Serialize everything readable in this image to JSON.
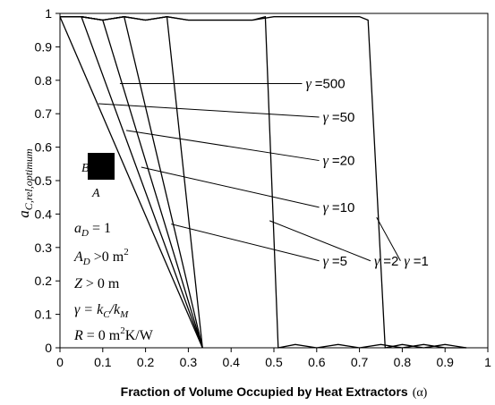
{
  "chart_data": {
    "type": "line",
    "xlabel": "Fraction of Volume Occupied by Heat Extractors",
    "xlabel_symbol": "(α)",
    "ylabel": "a",
    "ylabel_sub": "C,rel,optimum",
    "xlim": [
      0,
      1
    ],
    "ylim": [
      0,
      1
    ],
    "x_ticks": [
      "0",
      "0.1",
      "0.2",
      "0.3",
      "0.4",
      "0.5",
      "0.6",
      "0.7",
      "0.8",
      "0.9",
      "1"
    ],
    "y_ticks": [
      "0",
      "0.1",
      "0.2",
      "0.3",
      "0.4",
      "0.5",
      "0.6",
      "0.7",
      "0.8",
      "0.9",
      "1"
    ],
    "grid": false,
    "series": [
      {
        "name": "γ =500",
        "x": [
          0,
          0.333
        ],
        "y": [
          0.99,
          0
        ]
      },
      {
        "name": "γ =50",
        "x": [
          0,
          0.05,
          0.333
        ],
        "y": [
          0.99,
          0.99,
          0
        ]
      },
      {
        "name": "γ =20",
        "x": [
          0,
          0.05,
          0.1,
          0.333
        ],
        "y": [
          0.99,
          0.99,
          0.98,
          0
        ]
      },
      {
        "name": "γ =10",
        "x": [
          0,
          0.05,
          0.1,
          0.15,
          0.333
        ],
        "y": [
          0.99,
          0.99,
          0.98,
          0.99,
          0
        ]
      },
      {
        "name": "γ =5",
        "x": [
          0,
          0.05,
          0.1,
          0.15,
          0.2,
          0.25,
          0.333
        ],
        "y": [
          0.99,
          0.99,
          0.98,
          0.99,
          0.98,
          0.99,
          0
        ]
      },
      {
        "name": "γ =2",
        "x": [
          0,
          0.05,
          0.1,
          0.15,
          0.2,
          0.25,
          0.3,
          0.35,
          0.4,
          0.45,
          0.48,
          0.51,
          0.55,
          0.6,
          0.65,
          0.7,
          0.75,
          0.8,
          0.85,
          0.9,
          0.95
        ],
        "y": [
          0.99,
          0.99,
          0.98,
          0.99,
          0.98,
          0.99,
          0.98,
          0.98,
          0.98,
          0.98,
          0.99,
          0,
          0.01,
          0,
          0.01,
          0,
          0.01,
          0,
          0.01,
          0,
          0
        ]
      },
      {
        "name": "γ =1",
        "x": [
          0,
          0.05,
          0.1,
          0.15,
          0.2,
          0.25,
          0.3,
          0.35,
          0.4,
          0.45,
          0.5,
          0.55,
          0.6,
          0.65,
          0.7,
          0.72,
          0.76,
          0.8,
          0.85,
          0.9,
          0.95
        ],
        "y": [
          0.99,
          0.99,
          0.98,
          0.99,
          0.98,
          0.99,
          0.98,
          0.98,
          0.98,
          0.98,
          0.99,
          0.99,
          0.99,
          0.99,
          0.99,
          0.98,
          0,
          0.01,
          0,
          0.01,
          0
        ]
      }
    ],
    "annotations": [
      {
        "label": "γ =500",
        "x": 0.57,
        "y": 0.79,
        "line_to_x": 0.14,
        "line_to_y": 0.79
      },
      {
        "label": "γ =50",
        "x": 0.61,
        "y": 0.69,
        "line_to_x": 0.09,
        "line_to_y": 0.73
      },
      {
        "label": "γ =20",
        "x": 0.61,
        "y": 0.56,
        "line_to_x": 0.155,
        "line_to_y": 0.65
      },
      {
        "label": "γ =10",
        "x": 0.61,
        "y": 0.42,
        "line_to_x": 0.19,
        "line_to_y": 0.54
      },
      {
        "label": "γ =5",
        "x": 0.61,
        "y": 0.26,
        "line_to_x": 0.26,
        "line_to_y": 0.37
      },
      {
        "label": "γ =2",
        "x": 0.73,
        "y": 0.26,
        "line_to_x": 0.49,
        "line_to_y": 0.38
      },
      {
        "label": "γ =1",
        "x": 0.8,
        "y": 0.26,
        "line_to_x": 0.74,
        "line_to_y": 0.39
      }
    ]
  },
  "legend_block": {
    "marker_top_label": "B",
    "marker_bottom_label": "A",
    "lines": [
      {
        "lhs": "a",
        "sub": "D",
        "rhs": " = 1"
      },
      {
        "lhs": "A",
        "sub": "D",
        "rhs": " >0 m",
        "sup": "2"
      },
      {
        "lhs": "Z",
        "sub": "",
        "rhs": " > 0 m"
      },
      {
        "lhs": "γ = k",
        "sub": "C",
        "rhs": "/k",
        "sub2": "M"
      },
      {
        "lhs": "R",
        "sub": "",
        "rhs": " = 0 m",
        "sup": "2",
        "rhs2": "K/W"
      }
    ]
  }
}
